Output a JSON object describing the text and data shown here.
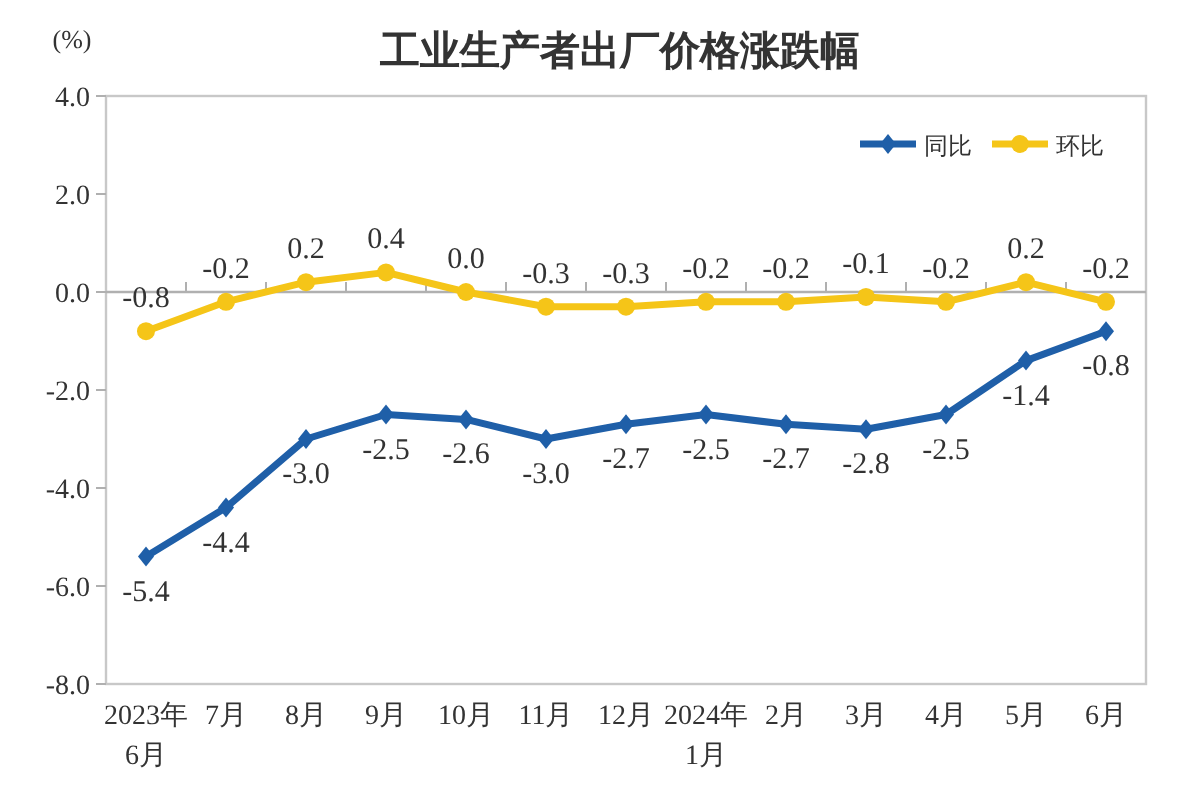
{
  "chart_data": {
    "type": "line",
    "title": "工业生产者出厂价格涨跌幅",
    "ylabel": "(%)",
    "categories": [
      "2023年6月",
      "7月",
      "8月",
      "9月",
      "10月",
      "11月",
      "12月",
      "2024年1月",
      "2月",
      "3月",
      "4月",
      "5月",
      "6月"
    ],
    "series": [
      {
        "name": "同比",
        "color": "#1f5fa8",
        "marker": "diamond",
        "values": [
          -5.4,
          -4.4,
          -3.0,
          -2.5,
          -2.6,
          -3.0,
          -2.7,
          -2.5,
          -2.7,
          -2.8,
          -2.5,
          -1.4,
          -0.8
        ],
        "value_labels": [
          "-5.4",
          "-4.4",
          "-3.0",
          "-2.5",
          "-2.6",
          "-3.0",
          "-2.7",
          "-2.5",
          "-2.7",
          "-2.8",
          "-2.5",
          "-1.4",
          "-0.8"
        ]
      },
      {
        "name": "环比",
        "color": "#f5c518",
        "marker": "circle",
        "values": [
          -0.8,
          -0.2,
          0.2,
          0.4,
          0.0,
          -0.3,
          -0.3,
          -0.2,
          -0.2,
          -0.1,
          -0.2,
          0.2,
          -0.2
        ],
        "value_labels": [
          "-0.8",
          "-0.2",
          "0.2",
          "0.4",
          "0.0",
          "-0.3",
          "-0.3",
          "-0.2",
          "-0.2",
          "-0.1",
          "-0.2",
          "0.2",
          "-0.2"
        ]
      }
    ],
    "ylim": [
      -8.0,
      4.0
    ],
    "yticks": [
      {
        "value": -8,
        "label": "-8.0"
      },
      {
        "value": -6,
        "label": "-6.0"
      },
      {
        "value": -4,
        "label": "-4.0"
      },
      {
        "value": -2,
        "label": "-2.0"
      },
      {
        "value": 0,
        "label": "0.0"
      },
      {
        "value": 2,
        "label": "2.0"
      },
      {
        "value": 4,
        "label": "4.0"
      }
    ],
    "legend": "top right"
  }
}
